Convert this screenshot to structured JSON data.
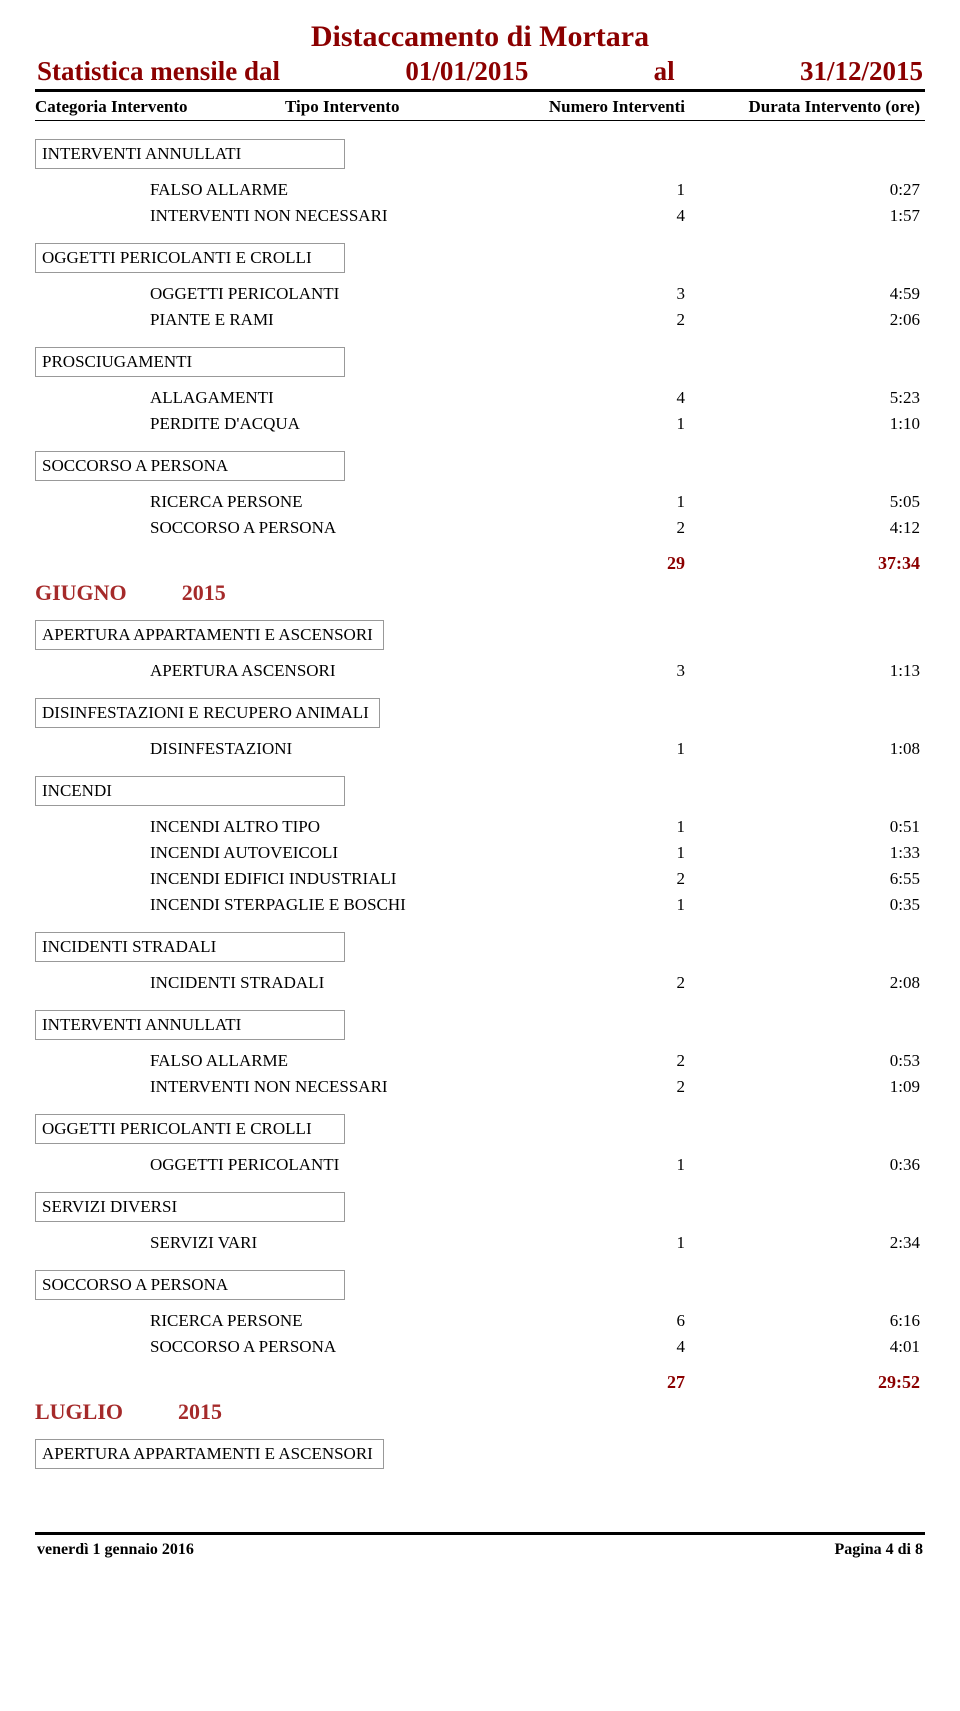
{
  "colors": {
    "dark_red": "#8B0000",
    "maroon": "#A52A2A",
    "black": "#000000"
  },
  "title": "Distaccamento di Mortara",
  "subtitle_prefix": "Statistica mensile dal",
  "date_from": "01/01/2015",
  "date_mid": "al",
  "date_to": "31/12/2015",
  "title_fontsize": 30,
  "subtitle_fontsize": 27,
  "header": {
    "categoria": "Categoria Intervento",
    "tipo": "Tipo Intervento",
    "numero": "Numero Interventi",
    "durata": "Durata Intervento (ore)",
    "fontsize": 17
  },
  "body_fontsize": 17,
  "sections": [
    {
      "category": "INTERVENTI ANNULLATI",
      "rows": [
        {
          "tipo": "FALSO ALLARME",
          "num": "1",
          "dur": "0:27"
        },
        {
          "tipo": "INTERVENTI NON NECESSARI",
          "num": "4",
          "dur": "1:57"
        }
      ]
    },
    {
      "category": "OGGETTI PERICOLANTI E CROLLI",
      "rows": [
        {
          "tipo": "OGGETTI PERICOLANTI",
          "num": "3",
          "dur": "4:59"
        },
        {
          "tipo": "PIANTE E RAMI",
          "num": "2",
          "dur": "2:06"
        }
      ]
    },
    {
      "category": "PROSCIUGAMENTI",
      "rows": [
        {
          "tipo": "ALLAGAMENTI",
          "num": "4",
          "dur": "5:23"
        },
        {
          "tipo": "PERDITE D'ACQUA",
          "num": "1",
          "dur": "1:10"
        }
      ]
    },
    {
      "category": "SOCCORSO A PERSONA",
      "rows": [
        {
          "tipo": "RICERCA PERSONE",
          "num": "1",
          "dur": "5:05"
        },
        {
          "tipo": "SOCCORSO A PERSONA",
          "num": "2",
          "dur": "4:12"
        }
      ]
    }
  ],
  "total1": {
    "num": "29",
    "dur": "37:34"
  },
  "month1": {
    "name": "GIUGNO",
    "year": "2015",
    "fontsize": 22
  },
  "sections2": [
    {
      "category": "APERTURA APPARTAMENTI E ASCENSORI",
      "rows": [
        {
          "tipo": "APERTURA ASCENSORI",
          "num": "3",
          "dur": "1:13"
        }
      ]
    },
    {
      "category": "DISINFESTAZIONI E RECUPERO ANIMALI",
      "rows": [
        {
          "tipo": "DISINFESTAZIONI",
          "num": "1",
          "dur": "1:08"
        }
      ]
    },
    {
      "category": "INCENDI",
      "rows": [
        {
          "tipo": "INCENDI ALTRO TIPO",
          "num": "1",
          "dur": "0:51"
        },
        {
          "tipo": "INCENDI AUTOVEICOLI",
          "num": "1",
          "dur": "1:33"
        },
        {
          "tipo": "INCENDI EDIFICI INDUSTRIALI",
          "num": "2",
          "dur": "6:55"
        },
        {
          "tipo": "INCENDI STERPAGLIE E BOSCHI",
          "num": "1",
          "dur": "0:35"
        }
      ]
    },
    {
      "category": "INCIDENTI STRADALI",
      "rows": [
        {
          "tipo": "INCIDENTI STRADALI",
          "num": "2",
          "dur": "2:08"
        }
      ]
    },
    {
      "category": "INTERVENTI ANNULLATI",
      "rows": [
        {
          "tipo": "FALSO ALLARME",
          "num": "2",
          "dur": "0:53"
        },
        {
          "tipo": "INTERVENTI NON NECESSARI",
          "num": "2",
          "dur": "1:09"
        }
      ]
    },
    {
      "category": "OGGETTI PERICOLANTI E CROLLI",
      "rows": [
        {
          "tipo": "OGGETTI PERICOLANTI",
          "num": "1",
          "dur": "0:36"
        }
      ]
    },
    {
      "category": "SERVIZI DIVERSI",
      "rows": [
        {
          "tipo": "SERVIZI VARI",
          "num": "1",
          "dur": "2:34"
        }
      ]
    },
    {
      "category": "SOCCORSO A PERSONA",
      "rows": [
        {
          "tipo": "RICERCA PERSONE",
          "num": "6",
          "dur": "6:16"
        },
        {
          "tipo": "SOCCORSO A PERSONA",
          "num": "4",
          "dur": "4:01"
        }
      ]
    }
  ],
  "total2": {
    "num": "27",
    "dur": "29:52"
  },
  "month2": {
    "name": "LUGLIO",
    "year": "2015"
  },
  "sections3_category": "APERTURA APPARTAMENTI E ASCENSORI",
  "footer": {
    "date": "venerdì 1 gennaio 2016",
    "page": "Pagina 4 di 8",
    "fontsize": 16
  }
}
